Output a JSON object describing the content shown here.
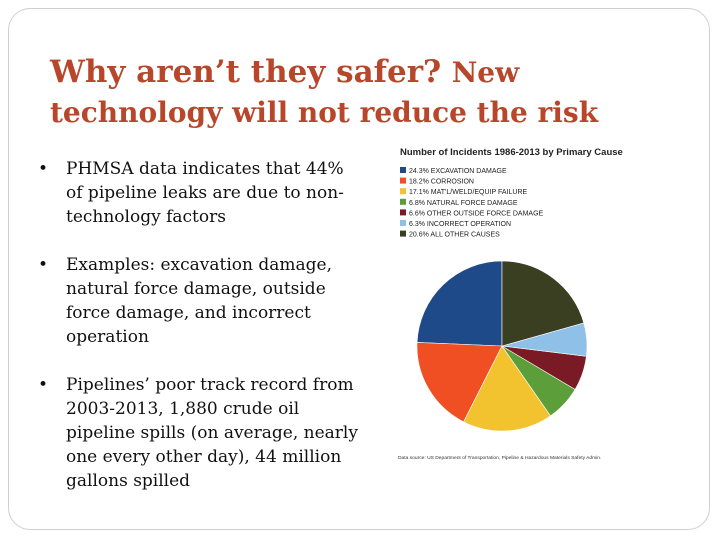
{
  "title": {
    "line1_part1": "Why aren’t they safer?",
    "line1_part2": "New",
    "line2": "technology will not reduce the risk"
  },
  "bullets": [
    {
      "symbol": "•",
      "text": "PHMSA data indicates that 44% of pipeline leaks are due to non-technology factors"
    },
    {
      "symbol": "•",
      "text": "Examples: excavation damage, natural force damage, outside force damage, and incorrect operation"
    },
    {
      "symbol": "•",
      "text": "Pipelines’ poor track record from 2003-2013, 1,880 crude oil pipeline spills (on average, nearly one every other day), 44 million gallons spilled"
    }
  ],
  "colors": {
    "title": "#b8462a"
  },
  "chart_data": {
    "type": "pie",
    "title": "Number of Incidents 1986-2013 by Primary Cause",
    "legend_position": "top-left",
    "slices": [
      {
        "label": "24.3% EXCAVATION DAMAGE",
        "value": 24.3,
        "color": "#1f4a8a"
      },
      {
        "label": "18.2% CORROSION",
        "value": 18.2,
        "color": "#ef4f23"
      },
      {
        "label": "17.1% MAT'L/WELD/EQUIP FAILURE",
        "value": 17.1,
        "color": "#f2c32e"
      },
      {
        "label": "6.8% NATURAL FORCE DAMAGE",
        "value": 6.8,
        "color": "#5c9e3a"
      },
      {
        "label": "6.6% OTHER OUTSIDE FORCE DAMAGE",
        "value": 6.6,
        "color": "#7a1a25"
      },
      {
        "label": "6.3% INCORRECT OPERATION",
        "value": 6.3,
        "color": "#8fc1e8"
      },
      {
        "label": "20.6% ALL OTHER CAUSES",
        "value": 20.6,
        "color": "#3a3f22"
      }
    ],
    "source": "Data source: US Department of Transportation, Pipeline & Hazardous Materials Safety Admin."
  }
}
